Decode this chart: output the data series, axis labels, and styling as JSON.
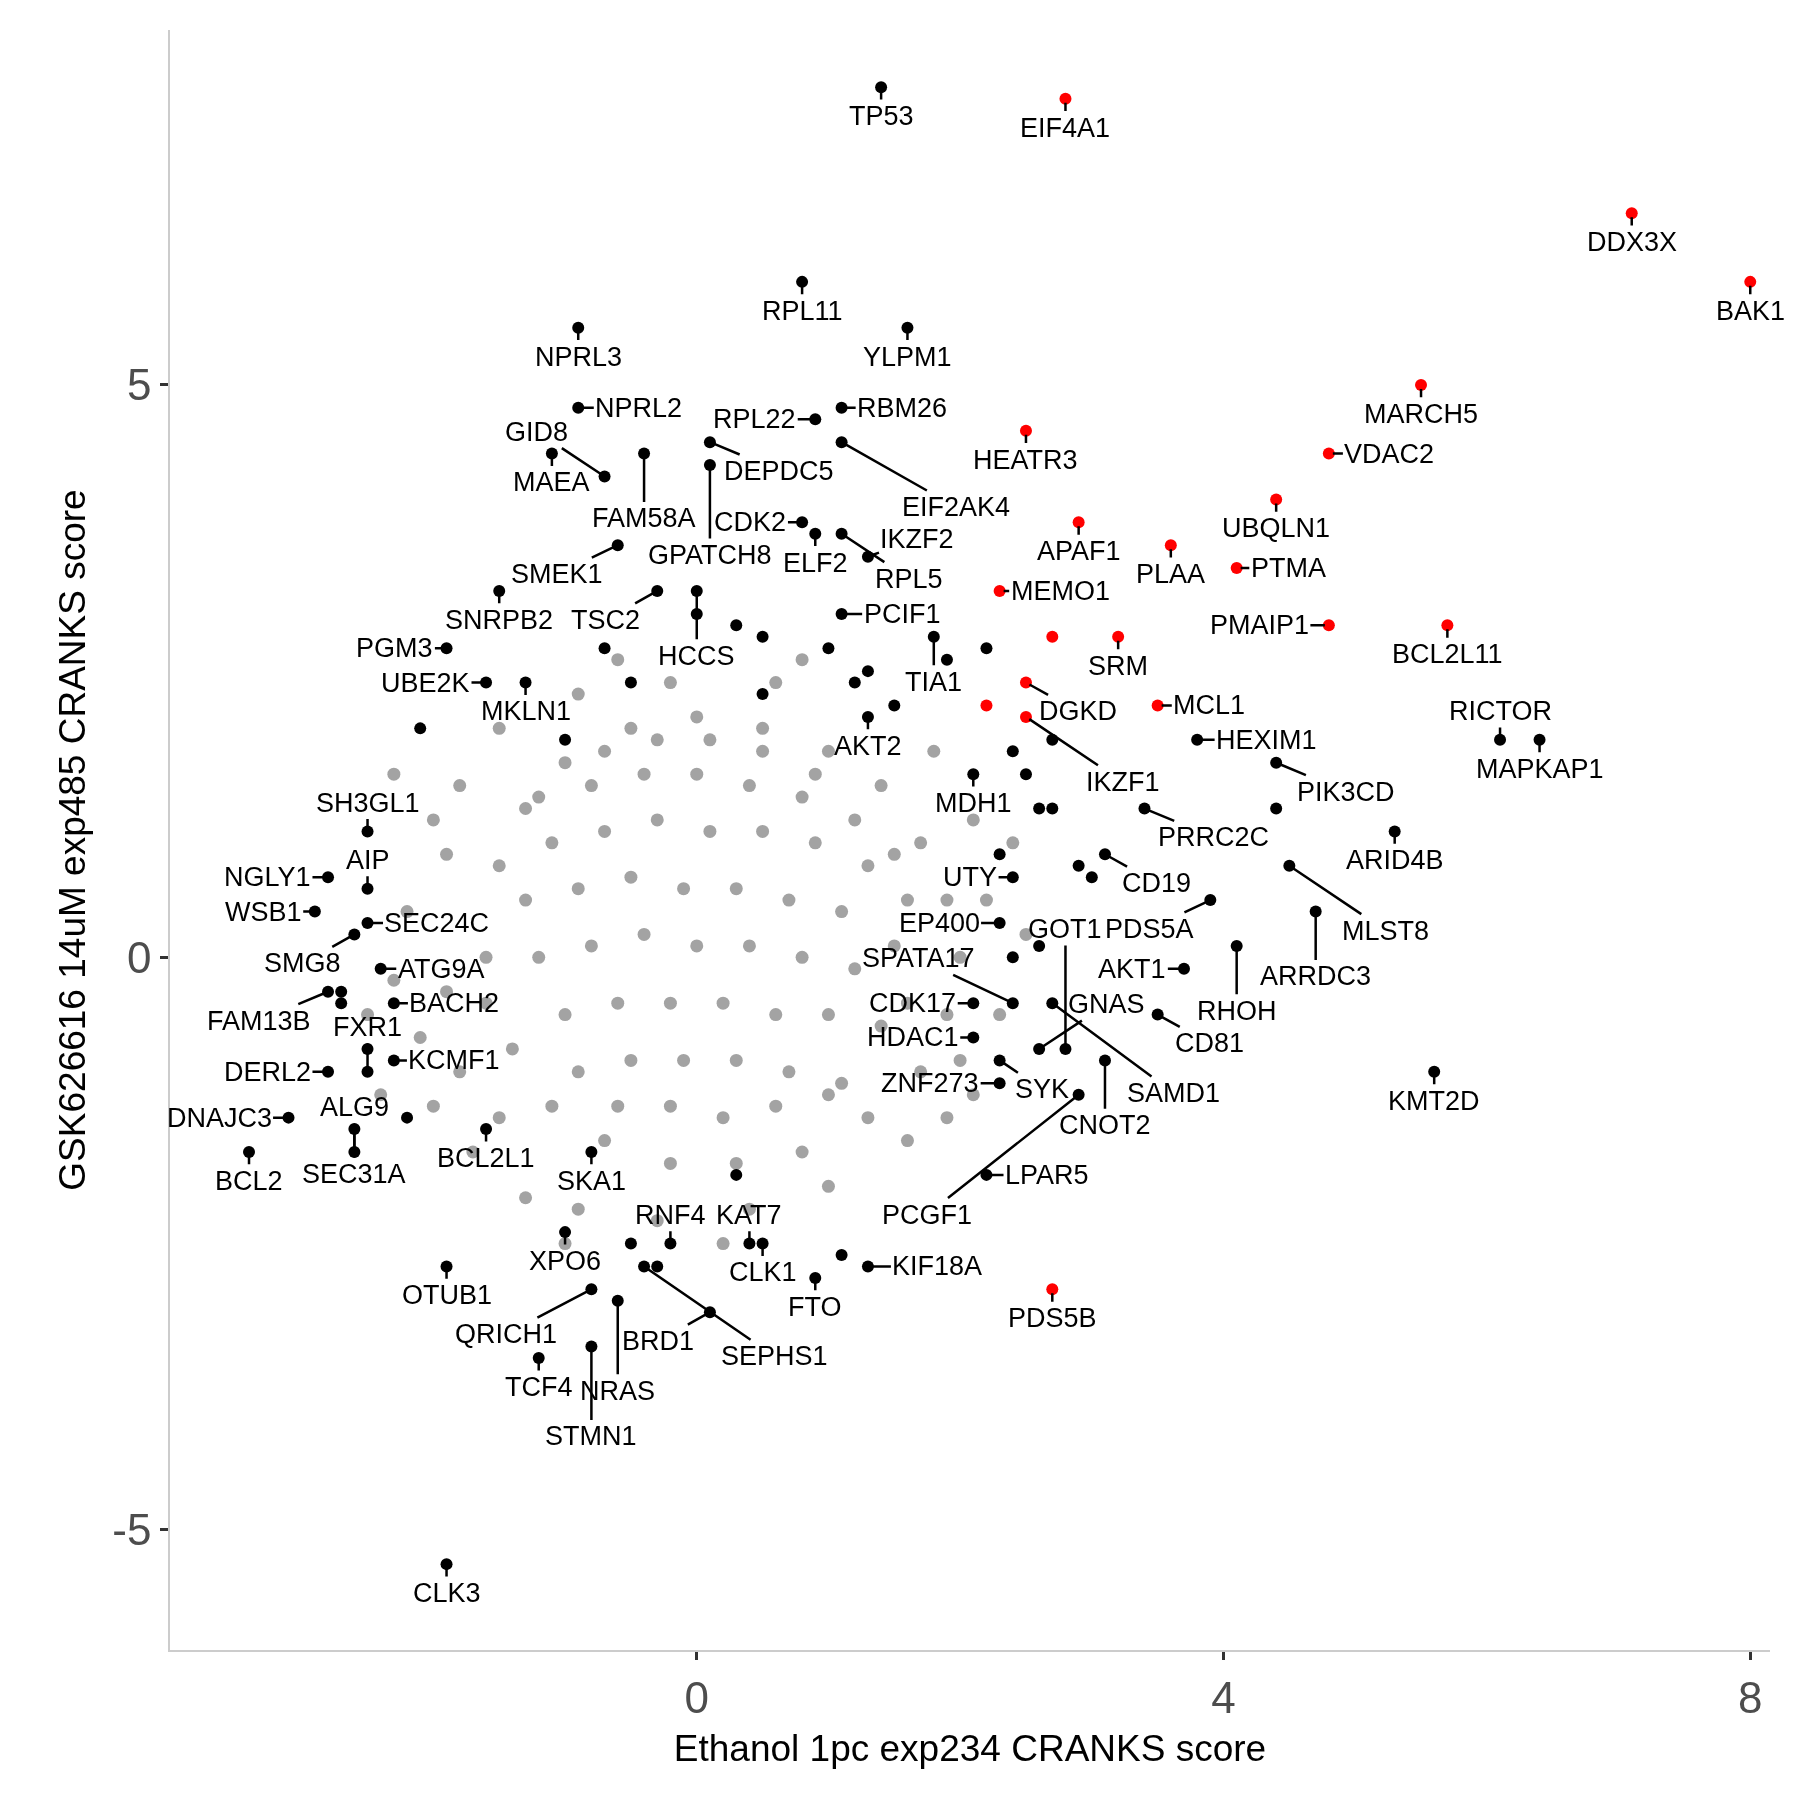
{
  "chart_data": {
    "type": "scatter",
    "xlabel": "Ethanol 1pc exp234 CRANKS score",
    "ylabel": "GSK626616 14uM exp485 CRANKS score",
    "xlim": [
      -4.0,
      8.15
    ],
    "ylim": [
      -6.05,
      8.1
    ],
    "xticks": [
      0,
      4,
      8
    ],
    "yticks": [
      -5,
      0,
      5
    ],
    "grid": false,
    "marker": "circle",
    "series": [
      {
        "color": "#a3a3a3",
        "x": [
          -1.6,
          -1.5,
          -1.3,
          -1.0,
          -0.5,
          0.0,
          0.5,
          1.0,
          1.4,
          1.7,
          1.9,
          2.0,
          1.9,
          1.7,
          1.3,
          0.8,
          0.3,
          -0.2,
          -0.7,
          -1.1,
          -1.4,
          -1.6,
          -2.3,
          -2.0,
          -2.2,
          -2.3,
          -2.1,
          -2.0,
          -1.7,
          -1.3,
          -0.9,
          -0.3,
          0.4,
          1.0,
          1.6,
          2.1,
          2.3,
          2.2,
          2.1,
          1.8,
          1.3,
          0.6,
          -0.2,
          -0.9,
          -1.5,
          -1.8,
          -1.9,
          -1.9,
          -1.8,
          -1.5,
          1.9,
          2.4,
          2.5,
          2.0,
          -2.5,
          -2.4,
          -1.0,
          0.2,
          0.8,
          -0.6,
          -1.2,
          -0.8,
          -0.4,
          0.0,
          0.4,
          0.8,
          1.2,
          1.5,
          -1.1,
          -0.7,
          -0.3,
          0.1,
          0.5,
          0.9,
          1.3,
          1.6,
          -1.3,
          -0.9,
          -0.5,
          -0.1,
          0.3,
          0.7,
          1.1,
          1.5,
          -1.2,
          -0.8,
          -0.4,
          0.0,
          0.4,
          0.8,
          1.2,
          1.6,
          -1.0,
          -0.6,
          -0.2,
          0.2,
          0.6,
          1.0,
          1.4,
          -0.9,
          -0.5,
          -0.1,
          0.3,
          0.7,
          1.1,
          -0.6,
          -0.2,
          0.2,
          0.6,
          1.0,
          -0.7,
          -0.3,
          0.1,
          0.5,
          0.9
        ],
        "values": [
          0.0,
          0.8,
          1.3,
          1.7,
          2.0,
          2.1,
          2.0,
          1.8,
          1.5,
          1.0,
          0.5,
          0.0,
          -0.5,
          -1.0,
          -1.4,
          -1.7,
          -1.8,
          -1.8,
          -1.6,
          -1.3,
          -0.8,
          -0.4,
          1.6,
          1.2,
          0.4,
          -0.2,
          -0.7,
          -1.3,
          -1.7,
          -2.1,
          -2.2,
          -2.3,
          -2.2,
          -2.0,
          -1.6,
          -1.2,
          -0.5,
          0.5,
          1.2,
          1.8,
          null,
          2.4,
          2.4,
          2.3,
          2.0,
          1.5,
          0.9,
          -0.3,
          -1.0,
          -1.4,
          -1.4,
          1.0,
          0.2,
          -0.9,
          -0.5,
          -1.2,
          -2.5,
          -2.5,
          2.6,
          2.6,
          1.4,
          1.5,
          1.6,
          1.6,
          1.5,
          1.4,
          1.2,
          0.9,
          1.0,
          1.1,
          1.2,
          1.1,
          1.1,
          1.0,
          0.8,
          0.5,
          0.5,
          0.6,
          0.7,
          0.6,
          0.6,
          0.5,
          0.4,
          0.1,
          0.0,
          0.1,
          0.2,
          0.1,
          0.1,
          0.0,
          -0.1,
          -0.4,
          -0.5,
          -0.4,
          -0.4,
          -0.4,
          -0.5,
          -0.5,
          -0.6,
          -1.0,
          -0.9,
          -0.9,
          -0.9,
          -1.0,
          -1.1,
          -1.3,
          -1.3,
          -1.4,
          -1.3,
          -1.2,
          1.8,
          1.9,
          1.9,
          1.8,
          1.6
        ]
      },
      {
        "color": "#000000",
        "x": [
          1.4,
          0.8,
          1.6,
          -0.9,
          0.9,
          1.1,
          -0.9,
          -1.1,
          -0.4,
          -0.7,
          0.1,
          1.1,
          0.1,
          0.9,
          1.1,
          -0.6,
          0.8,
          1.3,
          -1.5,
          -0.3,
          0.0,
          1.1,
          1.8,
          -1.9,
          -1.3,
          -1.6,
          1.3,
          2.1,
          3.8,
          4.4,
          6.4,
          6.1,
          3.4,
          5.3,
          3.1,
          4.5,
          2.4,
          3.9,
          4.7,
          4.1,
          3.7,
          2.3,
          3.5,
          2.1,
          2.7,
          2.4,
          2.1,
          5.6,
          3.1,
          2.8,
          2.3,
          2.9,
          2.6,
          2.3,
          2.2,
          1.3,
          0.5,
          0.9,
          0.4,
          -0.2,
          0.1,
          -0.6,
          -0.8,
          -1.2,
          -0.8,
          -1.9,
          -0.4,
          -1.0,
          -0.8,
          -1.6,
          -2.6,
          -2.6,
          -3.1,
          -3.4,
          -2.8,
          -2.3,
          -2.5,
          -2.3,
          -2.8,
          -2.6,
          -2.4,
          -2.5,
          -2.9,
          -2.5,
          -2.8,
          -2.5,
          -1.9,
          0.0,
          0.3,
          0.5,
          1.0,
          1.3,
          1.9,
          2.2,
          -0.7,
          -0.5,
          0.5,
          1.2,
          1.5,
          2.4,
          2.5,
          2.7,
          2.6,
          2.7,
          2.3,
          2.9,
          3.0,
          2.6,
          2.4,
          4.4,
          -2.7,
          -2.7,
          -2.5,
          -2.2,
          -0.5,
          -0.3,
          0.3,
          1.1,
          -1.0,
          -2.1
        ],
        "values": [
          7.6,
          5.9,
          5.5,
          5.5,
          4.7,
          4.8,
          4.8,
          4.4,
          4.4,
          4.2,
          4.5,
          4.5,
          4.3,
          3.7,
          3.7,
          3.6,
          3.8,
          3.5,
          3.2,
          3.2,
          3.2,
          3.0,
          2.8,
          2.7,
          2.4,
          2.4,
          2.1,
          1.6,
          1.9,
          1.7,
          1.9,
          1.9,
          1.3,
          1.1,
          0.9,
          0.8,
          0.7,
          0.5,
          0.4,
          0.1,
          -0.1,
          0.3,
          -0.5,
          -0.4,
          -0.4,
          -0.4,
          -0.7,
          -1.0,
          -0.9,
          -0.8,
          -0.9,
          -1.2,
          -0.8,
          -1.1,
          -1.9,
          -2.7,
          -2.5,
          -2.8,
          -2.5,
          -2.5,
          -3.1,
          -3.0,
          -3.4,
          -3.5,
          -2.9,
          -2.7,
          -2.7,
          -2.4,
          -1.7,
          -1.5,
          -1.7,
          -1.5,
          -1.4,
          -1.7,
          -1.0,
          -0.9,
          -1.0,
          -0.4,
          -0.3,
          0.2,
          -0.1,
          0.3,
          0.4,
          0.6,
          0.7,
          1.1,
          -5.3,
          3.0,
          2.9,
          2.8,
          2.7,
          2.5,
          2.6,
          2.7,
          2.7,
          2.4,
          2.3,
          2.4,
          2.2,
          1.8,
          1.6,
          1.9,
          1.3,
          1.3,
          0.9,
          0.8,
          0.7,
          0.1,
          0.0,
          1.3,
          -0.4,
          -0.3,
          -0.8,
          -1.4,
          -2.5,
          -2.7,
          -1.9,
          -2.6,
          1.9,
          2.0
        ]
      },
      {
        "color": "#ff0000",
        "x": [
          2.8,
          7.1,
          8.0,
          5.5,
          4.8,
          2.5,
          4.4,
          2.9,
          3.6,
          4.1,
          2.3,
          5.7,
          4.8,
          3.2,
          2.7,
          3.5,
          2.5,
          2.2,
          2.5,
          2.7
        ],
        "values": [
          7.5,
          6.5,
          5.9,
          5.0,
          4.4,
          4.6,
          4.0,
          3.8,
          3.6,
          3.4,
          3.2,
          2.9,
          2.9,
          2.8,
          2.8,
          2.2,
          2.4,
          2.2,
          2.1,
          -2.9
        ]
      }
    ],
    "annotations": [
      {
        "text": "TP53",
        "x": 1.4,
        "y": 7.6
      },
      {
        "text": "EIF4A1",
        "x": 2.8,
        "y": 7.5
      },
      {
        "text": "DDX3X",
        "x": 7.1,
        "y": 6.5
      },
      {
        "text": "BAK1",
        "x": 8.0,
        "y": 5.9
      },
      {
        "text": "RPL11",
        "x": 0.8,
        "y": 5.9
      },
      {
        "text": "YLPM1",
        "x": 1.6,
        "y": 5.5
      },
      {
        "text": "NPRL3",
        "x": -0.9,
        "y": 5.5
      },
      {
        "text": "MARCH5",
        "x": 5.5,
        "y": 5.0
      },
      {
        "text": "RPL22",
        "x": 0.9,
        "y": 4.7
      },
      {
        "text": "RBM26",
        "x": 1.1,
        "y": 4.8
      },
      {
        "text": "NPRL2",
        "x": -0.9,
        "y": 4.8
      },
      {
        "text": "DEPDC5",
        "x": 0.1,
        "y": 4.5
      },
      {
        "text": "HEATR3",
        "x": 2.5,
        "y": 4.6
      },
      {
        "text": "VDAC2",
        "x": 4.8,
        "y": 4.4
      },
      {
        "text": "EIF2AK4",
        "x": 1.1,
        "y": 4.5
      },
      {
        "text": "MAEA",
        "x": -1.1,
        "y": 4.4
      },
      {
        "text": "FAM58A",
        "x": -0.4,
        "y": 4.4
      },
      {
        "text": "GID8",
        "x": -0.7,
        "y": 4.2
      },
      {
        "text": "GPATCH8",
        "x": 0.1,
        "y": 4.3
      },
      {
        "text": "APAF1",
        "x": 2.9,
        "y": 3.8
      },
      {
        "text": "UBQLN1",
        "x": 4.4,
        "y": 4.0
      },
      {
        "text": "ELF2",
        "x": 0.9,
        "y": 3.7
      },
      {
        "text": "RPL5",
        "x": 1.1,
        "y": 3.7
      },
      {
        "text": "PLAA",
        "x": 3.6,
        "y": 3.6
      },
      {
        "text": "SMEK1",
        "x": -0.6,
        "y": 3.6
      },
      {
        "text": "CDK2",
        "x": 0.8,
        "y": 3.8
      },
      {
        "text": "IKZF2",
        "x": 1.3,
        "y": 3.5
      },
      {
        "text": "MEMO1",
        "x": 2.3,
        "y": 3.2
      },
      {
        "text": "PTMA",
        "x": 4.1,
        "y": 3.4
      },
      {
        "text": "SNRPB2",
        "x": -1.5,
        "y": 3.2
      },
      {
        "text": "TSC2",
        "x": -0.3,
        "y": 3.2
      },
      {
        "text": "HCCS",
        "x": 0.0,
        "y": 3.2
      },
      {
        "text": "PCIF1",
        "x": 1.1,
        "y": 3.0
      },
      {
        "text": "BCL2L11",
        "x": 5.7,
        "y": 2.9
      },
      {
        "text": "PMAIP1",
        "x": 4.8,
        "y": 2.9
      },
      {
        "text": "SRM",
        "x": 3.2,
        "y": 2.8
      },
      {
        "text": "TIA1",
        "x": 1.8,
        "y": 2.8
      },
      {
        "text": "PGM3",
        "x": -1.9,
        "y": 2.7
      },
      {
        "text": "MKLN1",
        "x": -1.3,
        "y": 2.4
      },
      {
        "text": "DGKD",
        "x": 2.5,
        "y": 2.4
      },
      {
        "text": "MCL1",
        "x": 3.5,
        "y": 2.2
      },
      {
        "text": "UBE2K",
        "x": -1.6,
        "y": 2.4
      },
      {
        "text": "IKZF1",
        "x": 2.5,
        "y": 2.1
      },
      {
        "text": "HEXIM1",
        "x": 3.8,
        "y": 1.9
      },
      {
        "text": "PIK3CD",
        "x": 4.4,
        "y": 1.7
      },
      {
        "text": "MAPKAP1",
        "x": 6.4,
        "y": 1.9
      },
      {
        "text": "RICTOR",
        "x": 6.1,
        "y": 1.9
      },
      {
        "text": "AKT2",
        "x": 1.3,
        "y": 2.1
      },
      {
        "text": "PRRC2C",
        "x": 3.4,
        "y": 1.3
      },
      {
        "text": "MDH1",
        "x": 2.1,
        "y": 1.6
      },
      {
        "text": "SH3GL1",
        "x": -2.5,
        "y": 1.1
      },
      {
        "text": "NGLY1",
        "x": -2.8,
        "y": 0.7
      },
      {
        "text": "ARID4B",
        "x": 5.3,
        "y": 1.1
      },
      {
        "text": "CD19",
        "x": 3.1,
        "y": 0.9
      },
      {
        "text": "MLST8",
        "x": 4.5,
        "y": 0.8
      },
      {
        "text": "AIP",
        "x": -2.5,
        "y": 0.6
      },
      {
        "text": "UTY",
        "x": 2.4,
        "y": 0.7
      },
      {
        "text": "WSB1",
        "x": -2.9,
        "y": 0.4
      },
      {
        "text": "SEC24C",
        "x": -2.5,
        "y": 0.3
      },
      {
        "text": "PDS5A",
        "x": 3.9,
        "y": 0.5
      },
      {
        "text": "ARRDC3",
        "x": 4.7,
        "y": 0.4
      },
      {
        "text": "EP400",
        "x": 2.3,
        "y": 0.3
      },
      {
        "text": "SMG8",
        "x": -2.6,
        "y": 0.2
      },
      {
        "text": "AKT1",
        "x": 3.7,
        "y": -0.1
      },
      {
        "text": "RHOH",
        "x": 4.1,
        "y": 0.1
      },
      {
        "text": "ATG9A",
        "x": -2.4,
        "y": -0.1
      },
      {
        "text": "CDK17",
        "x": 2.1,
        "y": -0.4
      },
      {
        "text": "SAMD1",
        "x": 2.7,
        "y": -0.4
      },
      {
        "text": "FAM13B",
        "x": -2.8,
        "y": -0.3
      },
      {
        "text": "SPATA17",
        "x": 2.4,
        "y": -0.4
      },
      {
        "text": "BACH2",
        "x": -2.3,
        "y": -0.4
      },
      {
        "text": "CD81",
        "x": 3.5,
        "y": -0.5
      },
      {
        "text": "HDAC1",
        "x": 2.1,
        "y": -0.7
      },
      {
        "text": "DERL2",
        "x": -2.8,
        "y": -1.0
      },
      {
        "text": "KCMF1",
        "x": -2.3,
        "y": -0.9
      },
      {
        "text": "FXR1",
        "x": -2.5,
        "y": -1.0
      },
      {
        "text": "CNOT2",
        "x": 3.1,
        "y": -0.9
      },
      {
        "text": "SYK",
        "x": 2.3,
        "y": -0.9
      },
      {
        "text": "PCGF1",
        "x": 2.9,
        "y": -1.2
      },
      {
        "text": "KMT2D",
        "x": 5.6,
        "y": -1.0
      },
      {
        "text": "DNAJC3",
        "x": -3.1,
        "y": -1.4
      },
      {
        "text": "GOT1",
        "x": 2.8,
        "y": -0.8
      },
      {
        "text": "BCL2L1",
        "x": -1.6,
        "y": -1.5
      },
      {
        "text": "GNAS",
        "x": 2.6,
        "y": -0.8
      },
      {
        "text": "ZNF273",
        "x": 2.3,
        "y": -1.1
      },
      {
        "text": "SKA1",
        "x": -0.8,
        "y": -1.7
      },
      {
        "text": "SEC31A",
        "x": -2.6,
        "y": -1.5
      },
      {
        "text": "XPO6",
        "x": -1.0,
        "y": -2.4
      },
      {
        "text": "LPAR5",
        "x": 2.2,
        "y": -1.9
      },
      {
        "text": "RNF4",
        "x": -0.2,
        "y": -2.5
      },
      {
        "text": "CLK1",
        "x": 0.5,
        "y": -2.5
      },
      {
        "text": "BCL2",
        "x": -3.4,
        "y": -1.7
      },
      {
        "text": "ALG9",
        "x": -2.6,
        "y": -1.7
      },
      {
        "text": "SEPHS1",
        "x": -0.4,
        "y": -2.7
      },
      {
        "text": "KIF18A",
        "x": 1.3,
        "y": -2.7
      },
      {
        "text": "KAT7",
        "x": 0.4,
        "y": -2.5
      },
      {
        "text": "OTUB1",
        "x": -1.9,
        "y": -2.7
      },
      {
        "text": "FTO",
        "x": 0.9,
        "y": -2.8
      },
      {
        "text": "PDS5B",
        "x": 2.7,
        "y": -2.9
      },
      {
        "text": "QRICH1",
        "x": -0.8,
        "y": -2.9
      },
      {
        "text": "NRAS",
        "x": -0.6,
        "y": -3.0
      },
      {
        "text": "BRD1",
        "x": 0.1,
        "y": -3.1
      },
      {
        "text": "TCF4",
        "x": -1.2,
        "y": -3.5
      },
      {
        "text": "STMN1",
        "x": -0.8,
        "y": -3.4
      },
      {
        "text": "CLK3",
        "x": -1.9,
        "y": -5.3
      }
    ]
  }
}
